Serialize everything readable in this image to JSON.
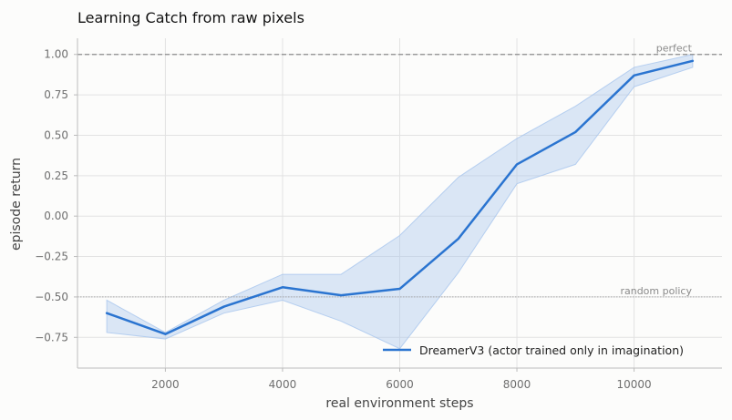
{
  "chart_data": {
    "type": "line",
    "title": "Learning Catch from raw pixels",
    "xlabel": "real environment steps",
    "ylabel": "episode return",
    "xlim": [
      500,
      11500
    ],
    "ylim": [
      -0.94,
      1.1
    ],
    "xticks": [
      2000,
      4000,
      6000,
      8000,
      10000
    ],
    "xtick_labels": [
      "2000",
      "4000",
      "6000",
      "8000",
      "10000"
    ],
    "yticks": [
      1.0,
      0.75,
      0.5,
      0.25,
      0.0,
      -0.25,
      -0.5,
      -0.75
    ],
    "ytick_labels": [
      "1.00",
      "0.75",
      "0.50",
      "0.25",
      "0.00",
      "−0.25",
      "−0.50",
      "−0.75"
    ],
    "grid": true,
    "legend_position": "bottom-right",
    "reference_lines": [
      {
        "label": "perfect",
        "y": 1.0,
        "style": "dashed",
        "color": "#8c8c8c"
      },
      {
        "label": "random policy",
        "y": -0.5,
        "style": "dotted",
        "color": "#a8a8a8"
      }
    ],
    "series": [
      {
        "name": "DreamerV3 (actor trained only in imagination)",
        "color": "#2a74d0",
        "band_color": "#a8c6ee",
        "x": [
          1000,
          2000,
          3000,
          4000,
          5000,
          6000,
          7000,
          8000,
          9000,
          10000,
          11000
        ],
        "y": [
          -0.6,
          -0.73,
          -0.56,
          -0.44,
          -0.49,
          -0.45,
          -0.14,
          0.32,
          0.52,
          0.87,
          0.96
        ],
        "lower": [
          -0.72,
          -0.76,
          -0.6,
          -0.52,
          -0.65,
          -0.82,
          -0.35,
          0.2,
          0.32,
          0.8,
          0.92
        ],
        "upper": [
          -0.52,
          -0.72,
          -0.52,
          -0.36,
          -0.36,
          -0.12,
          0.24,
          0.48,
          0.68,
          0.92,
          1.0
        ]
      }
    ]
  }
}
